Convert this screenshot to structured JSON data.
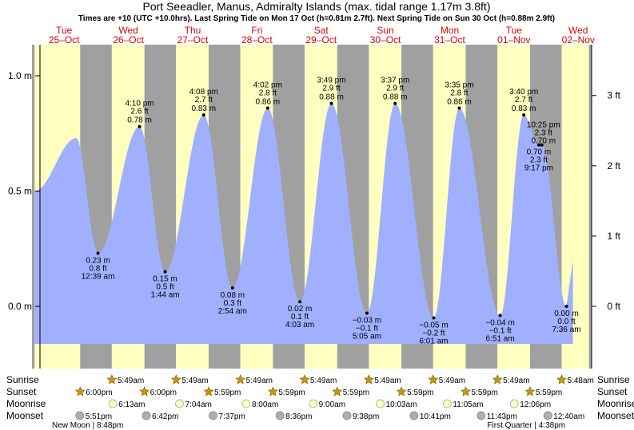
{
  "title": "Port Seeadler, Manus, Admiralty Islands (max. tidal range 1.17m 3.8ft)",
  "subtitle": "Times are +10 (UTC +10.0hrs). Last Spring Tide on Mon 17 Oct (h=0.81m 2.7ft). Next Spring Tide on Sun 30 Oct (h=0.88m 2.9ft)",
  "colors": {
    "day": "#ffffc0",
    "night": "#a0a0a0",
    "tide": "#a0b0ff",
    "day_label": "#e00000"
  },
  "row_labels": {
    "sunrise": "Sunrise",
    "sunset": "Sunset",
    "moonrise": "Moonrise",
    "moonset": "Moonset"
  },
  "chart_data": {
    "type": "area",
    "ylabel_left": "m",
    "ylabel_right": "ft",
    "ylim_m": [
      -0.26,
      1.17
    ],
    "yticks_left": [
      {
        "value": 0.0,
        "label": "0.0 m"
      },
      {
        "value": 0.5,
        "label": "0.5 m"
      },
      {
        "value": 1.0,
        "label": "1.0 m"
      }
    ],
    "yticks_right": [
      {
        "value": 0.0,
        "label": "0 ft"
      },
      {
        "value": 0.3048,
        "label": "1 ft"
      },
      {
        "value": 0.6096,
        "label": "2 ft"
      },
      {
        "value": 0.9144,
        "label": "3 ft"
      }
    ],
    "day_columns": [
      {
        "weekday": "Tue",
        "date": "25–Oct"
      },
      {
        "weekday": "Wed",
        "date": "26–Oct"
      },
      {
        "weekday": "Thu",
        "date": "27–Oct"
      },
      {
        "weekday": "Fri",
        "date": "28–Oct"
      },
      {
        "weekday": "Sat",
        "date": "29–Oct"
      },
      {
        "weekday": "Sun",
        "date": "30–Oct"
      },
      {
        "weekday": "Mon",
        "date": "31–Oct"
      },
      {
        "weekday": "Tue",
        "date": "01–Nov"
      },
      {
        "weekday": "Wed",
        "date": "02–Nov"
      }
    ],
    "series": [
      {
        "tide_events": [
          {
            "type": "high",
            "t_hours": 16.5,
            "height_m": 0.73
          },
          {
            "type": "low",
            "t_hours": 24.65,
            "height_m": 0.23,
            "label_m": "0.23 m",
            "label_ft": "0.8 ft",
            "label_time": "12:39 am"
          },
          {
            "type": "high",
            "t_hours": 40.17,
            "height_m": 0.78,
            "label_m": "0.78 m",
            "label_ft": "2.6 ft",
            "label_time": "4:10 pm"
          },
          {
            "type": "low",
            "t_hours": 49.73,
            "height_m": 0.15,
            "label_m": "0.15 m",
            "label_ft": "0.5 ft",
            "label_time": "1:44 am"
          },
          {
            "type": "high",
            "t_hours": 64.13,
            "height_m": 0.83,
            "label_m": "0.83 m",
            "label_ft": "2.7 ft",
            "label_time": "4:08 pm"
          },
          {
            "type": "low",
            "t_hours": 74.9,
            "height_m": 0.08,
            "label_m": "0.08 m",
            "label_ft": "0.3 ft",
            "label_time": "2:54 am"
          },
          {
            "type": "high",
            "t_hours": 88.03,
            "height_m": 0.86,
            "label_m": "0.86 m",
            "label_ft": "2.8 ft",
            "label_time": "4:02 pm"
          },
          {
            "type": "low",
            "t_hours": 100.05,
            "height_m": 0.02,
            "label_m": "0.02 m",
            "label_ft": "0.1 ft",
            "label_time": "4:03 am"
          },
          {
            "type": "high",
            "t_hours": 111.82,
            "height_m": 0.88,
            "label_m": "0.88 m",
            "label_ft": "2.9 ft",
            "label_time": "3:49 pm"
          },
          {
            "type": "low",
            "t_hours": 125.08,
            "height_m": -0.03,
            "label_m": "−0.03 m",
            "label_ft": "−0.1 ft",
            "label_time": "5:05 am"
          },
          {
            "type": "high",
            "t_hours": 135.62,
            "height_m": 0.88,
            "label_m": "0.88 m",
            "label_ft": "2.9 ft",
            "label_time": "3:37 pm"
          },
          {
            "type": "low",
            "t_hours": 150.02,
            "height_m": -0.05,
            "label_m": "−0.05 m",
            "label_ft": "−0.2 ft",
            "label_time": "6:01 am"
          },
          {
            "type": "high",
            "t_hours": 159.58,
            "height_m": 0.86,
            "label_m": "0.86 m",
            "label_ft": "2.8 ft",
            "label_time": "3:35 pm"
          },
          {
            "type": "low",
            "t_hours": 174.85,
            "height_m": -0.04,
            "label_m": "−0.04 m",
            "label_ft": "−0.1 ft",
            "label_time": "6:51 am"
          },
          {
            "type": "high",
            "t_hours": 183.67,
            "height_m": 0.83,
            "label_m": "0.83 m",
            "label_ft": "2.7 ft",
            "label_time": "3:40 pm"
          },
          {
            "type": "low",
            "t_hours": 189.28,
            "height_m": 0.7,
            "label_m": "0.70 m",
            "label_ft": "2.3 ft",
            "label_time": "9:17 pm"
          },
          {
            "type": "high",
            "t_hours": 190.42,
            "height_m": 0.7,
            "label_m": "0.70 m",
            "label_ft": "2.3 ft",
            "label_time": "10:25 pm"
          },
          {
            "type": "low",
            "t_hours": 199.6,
            "height_m": 0.0,
            "label_m": "0.00 m",
            "label_ft": "0.0 ft",
            "label_time": "7:36 am"
          }
        ]
      }
    ],
    "hours": {
      "start": 0,
      "end": 209
    },
    "data_start_hours": 1.0,
    "data_end_hours": 202.0,
    "sunrise_hours": [
      29.82,
      53.82,
      77.82,
      101.82,
      125.82,
      149.82,
      173.82,
      197.8
    ],
    "sunset_hours": [
      18.0,
      42.0,
      65.98,
      89.98,
      113.98,
      137.98,
      161.98,
      185.98
    ],
    "sunrise_labels": [
      "5:49am",
      "5:49am",
      "5:49am",
      "5:49am",
      "5:49am",
      "5:49am",
      "5:49am",
      "5:48am"
    ],
    "sunset_labels": [
      "6:00pm",
      "6:00pm",
      "5:59pm",
      "5:59pm",
      "5:59pm",
      "5:59pm",
      "5:59pm",
      "5:59pm"
    ],
    "moonrise": [
      {
        "t": 30.2,
        "label": "6:13am"
      },
      {
        "t": 55.1,
        "label": "7:04am"
      },
      {
        "t": 80.0,
        "label": "8:00am"
      },
      {
        "t": 105.0,
        "label": "9:00am"
      },
      {
        "t": 130.05,
        "label": "10:03am"
      },
      {
        "t": 155.08,
        "label": "11:05am"
      },
      {
        "t": 180.1,
        "label": "12:06pm"
      }
    ],
    "moonset": [
      {
        "t": 17.85,
        "label": "5:51pm"
      },
      {
        "t": 42.7,
        "label": "6:42pm"
      },
      {
        "t": 67.62,
        "label": "7:37pm"
      },
      {
        "t": 92.6,
        "label": "8:36pm"
      },
      {
        "t": 117.63,
        "label": "9:38pm"
      },
      {
        "t": 142.68,
        "label": "10:41pm"
      },
      {
        "t": 167.72,
        "label": "11:43pm"
      },
      {
        "t": 192.67,
        "label": "12:40am"
      }
    ],
    "moon_phases": [
      {
        "t": 20.8,
        "label": "New Moon | 8:48pm"
      },
      {
        "t": 184.6,
        "label": "First Quarter | 4:38pm"
      }
    ]
  }
}
